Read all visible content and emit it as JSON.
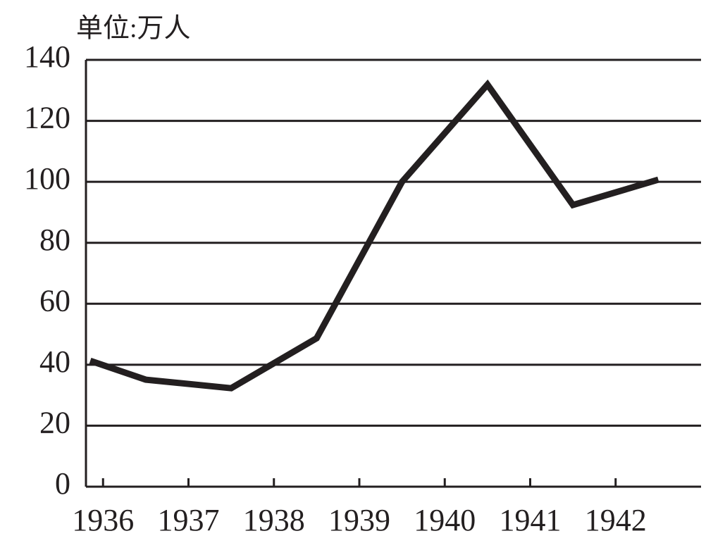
{
  "chart_data": {
    "type": "line",
    "unit_label": "单位:万人",
    "x": [
      1935.85,
      1936.5,
      1937.5,
      1938.5,
      1939.5,
      1940.5,
      1941.5,
      1942.5
    ],
    "values": [
      41.3,
      35.1,
      32.3,
      48.7,
      100,
      131.9,
      92.4,
      100.7
    ],
    "color": "#231f20",
    "xlim": [
      1935.8,
      1943
    ],
    "xticks": [
      1936,
      1937,
      1938,
      1939,
      1940,
      1941,
      1942
    ],
    "ylim": [
      0,
      140
    ],
    "yticks": [
      0,
      20,
      40,
      60,
      80,
      100,
      120,
      140
    ],
    "grid": true
  }
}
